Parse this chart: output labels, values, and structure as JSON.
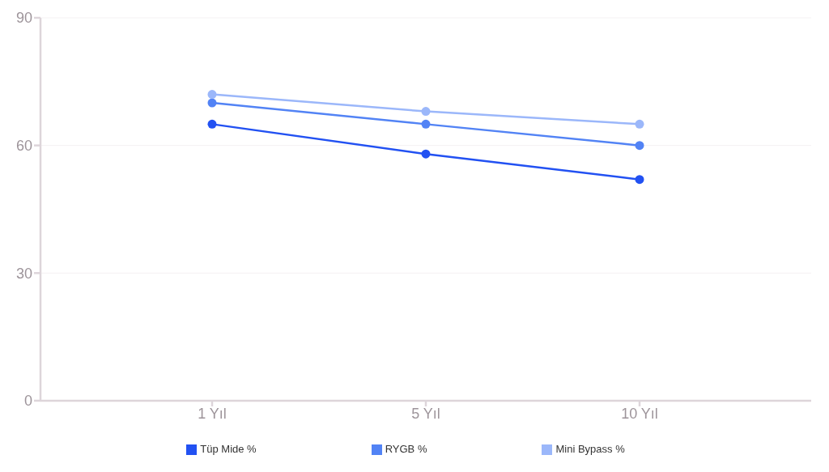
{
  "chart_data": {
    "type": "line",
    "categories": [
      "1 Yıl",
      "5 Yıl",
      "10 Yıl"
    ],
    "series": [
      {
        "name": "Tüp Mide %",
        "color": "#2251f2",
        "values": [
          65,
          58,
          52
        ]
      },
      {
        "name": "RYGB %",
        "color": "#5283f5",
        "values": [
          70,
          65,
          60
        ]
      },
      {
        "name": "Mini Bypass %",
        "color": "#9bb7fa",
        "values": [
          72,
          68,
          65
        ]
      }
    ],
    "ylim": [
      0,
      90
    ],
    "yticks": [
      0,
      30,
      60,
      90
    ],
    "grid": "y",
    "legend": "bottom",
    "marker": "circle",
    "line_style": "solid"
  }
}
